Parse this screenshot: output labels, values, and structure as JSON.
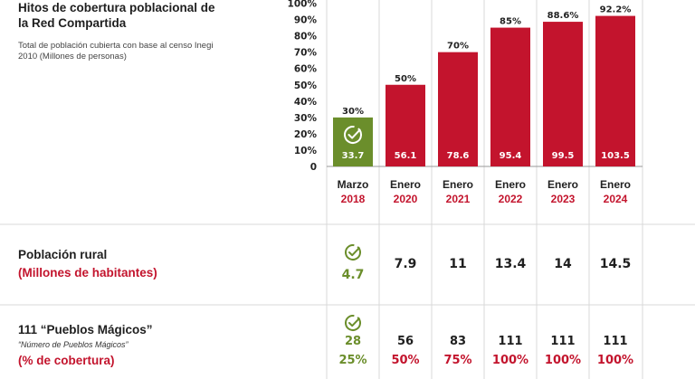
{
  "title": "Hitos de cobertura poblacional de la Red Compartida",
  "subtitle": "Total de población cubierta con base al censo Inegi 2010 (Millones de personas)",
  "colors": {
    "red": "#c3142d",
    "green": "#6b8e2b",
    "grid": "#d9d9d9"
  },
  "chart_data": {
    "type": "bar",
    "categories": [
      "Marzo 2018",
      "Enero 2020",
      "Enero 2021",
      "Enero 2022",
      "Enero 2023",
      "Enero 2024"
    ],
    "cat_top": [
      "Marzo",
      "Enero",
      "Enero",
      "Enero",
      "Enero",
      "Enero"
    ],
    "cat_bottom": [
      "2018",
      "2020",
      "2021",
      "2022",
      "2023",
      "2024"
    ],
    "values": [
      30,
      50,
      70,
      85,
      88.6,
      92.2
    ],
    "top_labels": [
      "30%",
      "50%",
      "70%",
      "85%",
      "88.6%",
      "92.2%"
    ],
    "inner_labels": [
      "33.7",
      "56.1",
      "78.6",
      "95.4",
      "99.5",
      "103.5"
    ],
    "yticks": [
      "0",
      "10%",
      "20%",
      "30%",
      "40%",
      "50%",
      "60%",
      "70%",
      "80%",
      "90%",
      "100%"
    ],
    "ylim": [
      0,
      100
    ],
    "bar_colors": [
      "#6b8e2b",
      "#c3142d",
      "#c3142d",
      "#c3142d",
      "#c3142d",
      "#c3142d"
    ],
    "check_icon": "check-circle-icon"
  },
  "rural": {
    "label": "Población rural",
    "sublabel": "(Millones de habitantes)",
    "values": [
      "4.7",
      "7.9",
      "11",
      "13.4",
      "14",
      "14.5"
    ]
  },
  "pueblos": {
    "label": "111 “Pueblos Mágicos”",
    "note": "“Número de Pueblos Mágicos”",
    "sublabel": "(% de cobertura)",
    "counts": [
      "28",
      "56",
      "83",
      "111",
      "111",
      "111"
    ],
    "percents": [
      "25%",
      "50%",
      "75%",
      "100%",
      "100%",
      "100%"
    ]
  }
}
